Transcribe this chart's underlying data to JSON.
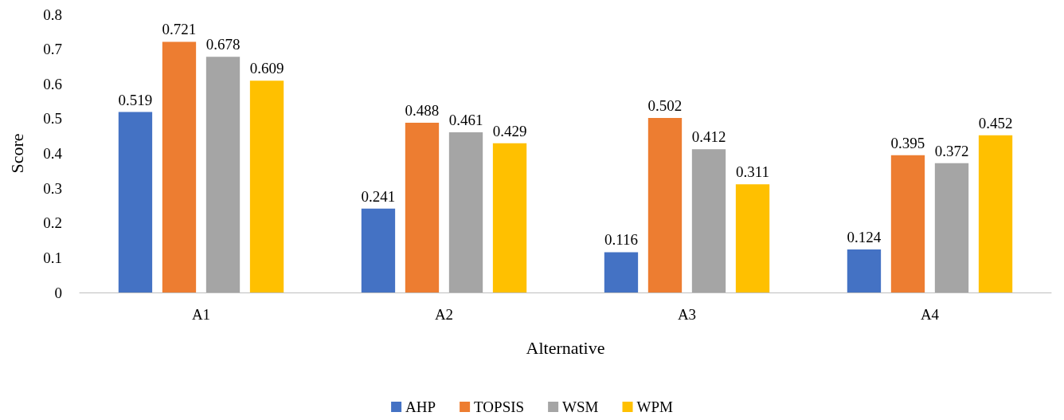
{
  "chart_data": {
    "type": "bar",
    "xlabel": "Alternative",
    "ylabel": "Score",
    "categories": [
      "A1",
      "A2",
      "A3",
      "A4"
    ],
    "series": [
      {
        "name": "AHP",
        "color": "#4472c4",
        "values": [
          0.519,
          0.241,
          0.116,
          0.124
        ]
      },
      {
        "name": "TOPSIS",
        "color": "#ed7d31",
        "values": [
          0.721,
          0.488,
          0.502,
          0.395
        ]
      },
      {
        "name": "WSM",
        "color": "#a5a5a5",
        "values": [
          0.678,
          0.461,
          0.412,
          0.372
        ]
      },
      {
        "name": "WPM",
        "color": "#ffc000",
        "values": [
          0.609,
          0.429,
          0.311,
          0.452
        ]
      }
    ],
    "ylim": [
      0,
      0.8
    ],
    "yticks": [
      0,
      0.1,
      0.2,
      0.3,
      0.4,
      0.5,
      0.6,
      0.7,
      0.8
    ],
    "grid": false,
    "legend": "bottom",
    "data_labels": true
  }
}
